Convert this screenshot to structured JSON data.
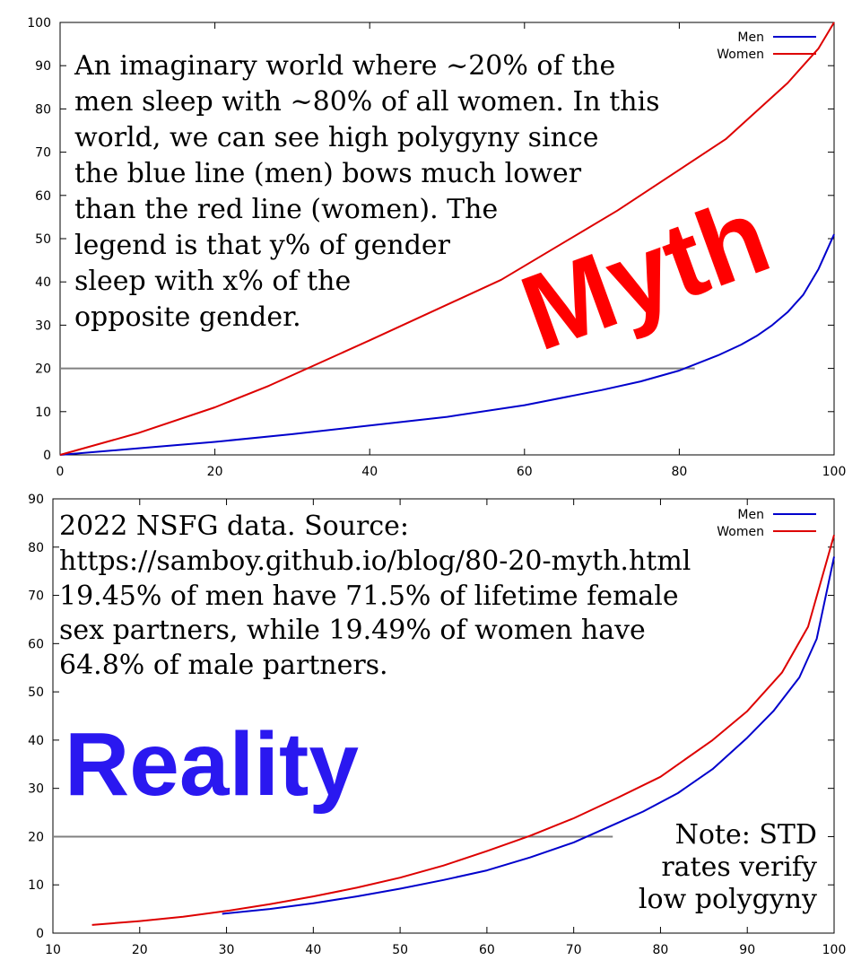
{
  "chart_data": [
    {
      "type": "line",
      "xlim": [
        0,
        100
      ],
      "ylim": [
        0,
        100
      ],
      "x_ticks": [
        0,
        20,
        40,
        60,
        80,
        100
      ],
      "y_ticks": [
        0,
        10,
        20,
        30,
        40,
        50,
        60,
        70,
        80,
        90,
        100
      ],
      "legend_position": "top-right",
      "grid": false,
      "series": [
        {
          "name": "Men",
          "color": "#0000cc",
          "x": [
            0,
            10,
            20,
            30,
            40,
            50,
            60,
            70,
            75,
            80,
            85,
            88,
            90,
            92,
            94,
            96,
            98,
            100
          ],
          "y": [
            0,
            1.5,
            3,
            4.8,
            6.8,
            8.8,
            11.5,
            15,
            17,
            19.5,
            23,
            25.5,
            27.5,
            30,
            33,
            37,
            43,
            51
          ]
        },
        {
          "name": "Women",
          "color": "#dd0000",
          "x": [
            0,
            10,
            20,
            27,
            40,
            57,
            72,
            86,
            94,
            98,
            100
          ],
          "y": [
            0,
            5,
            11,
            16,
            26.5,
            40.5,
            56.5,
            73,
            86,
            94,
            100
          ]
        }
      ],
      "reference_line": {
        "y": 20,
        "x_from": 0,
        "x_to": 82,
        "color": "#808080"
      },
      "annotation_lines": [
        "An imaginary world where ~20% of the",
        "men sleep with ~80% of all women. In this",
        "world, we can see high polygyny since",
        "the blue line (men) bows much lower",
        "than the red line (women). The",
        "legend is that y% of gender",
        "sleep with x% of the",
        "opposite gender."
      ],
      "stamp": "Myth"
    },
    {
      "type": "line",
      "xlim": [
        10,
        100
      ],
      "ylim": [
        0,
        90
      ],
      "x_ticks": [
        10,
        20,
        30,
        40,
        50,
        60,
        70,
        80,
        90,
        100
      ],
      "y_ticks": [
        0,
        10,
        20,
        30,
        40,
        50,
        60,
        70,
        80,
        90
      ],
      "legend_position": "top-right",
      "grid": false,
      "series": [
        {
          "name": "Men",
          "color": "#0000cc",
          "x": [
            29.5,
            35,
            40,
            45,
            50,
            55,
            60,
            65,
            70,
            75,
            78,
            82,
            86,
            90,
            93,
            96,
            98,
            100
          ],
          "y": [
            4,
            5,
            6.2,
            7.6,
            9.2,
            11,
            13,
            15.7,
            18.8,
            22.8,
            25.2,
            29,
            34,
            40.5,
            46,
            53,
            61,
            78
          ]
        },
        {
          "name": "Women",
          "color": "#dd0000",
          "x": [
            14.5,
            20,
            25,
            30,
            35,
            40,
            45,
            50,
            55,
            60,
            65,
            70,
            75,
            80,
            86,
            90,
            94,
            97,
            100
          ],
          "y": [
            1.7,
            2.5,
            3.4,
            4.6,
            6,
            7.6,
            9.4,
            11.5,
            14,
            17,
            20.2,
            23.8,
            28,
            32.4,
            40,
            46,
            54,
            63.5,
            82.5
          ]
        }
      ],
      "reference_line": {
        "y": 20,
        "x_from": 10,
        "x_to": 74.5,
        "color": "#808080"
      },
      "annotation_lines": [
        "2022 NSFG data. Source:",
        "https://samboy.github.io/blog/80-20-myth.html",
        "19.45% of men have 71.5% of lifetime female",
        "sex partners, while 19.49% of women have",
        "64.8% of male partners."
      ],
      "note_lines": [
        "Note: STD",
        "rates verify",
        "low polygyny"
      ],
      "stamp": "Reality"
    }
  ]
}
